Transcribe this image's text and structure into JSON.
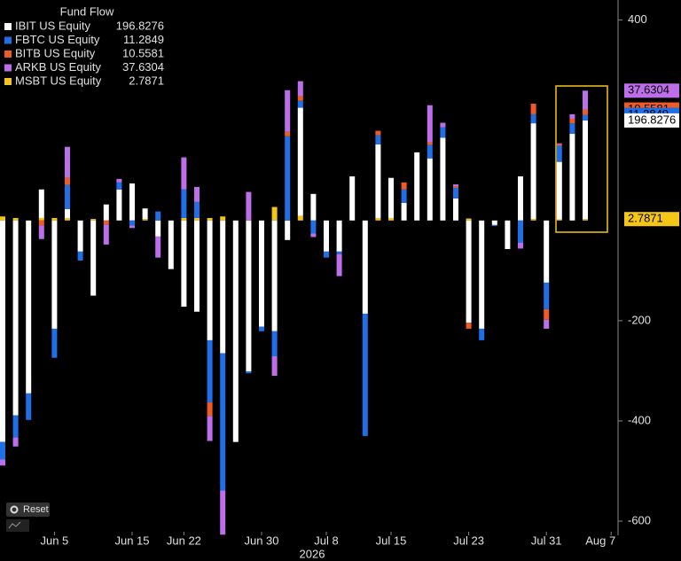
{
  "chart_data": {
    "type": "bar",
    "stacked": true,
    "legend_title": "Fund Flow",
    "xlabel": "2026",
    "categories": [
      null,
      null,
      null,
      null,
      "Jun 5",
      null,
      null,
      null,
      null,
      null,
      "Jun 15",
      null,
      null,
      null,
      "Jun 22",
      null,
      null,
      null,
      null,
      null,
      "Jun 30",
      null,
      null,
      null,
      null,
      "Jul 8",
      null,
      null,
      null,
      null,
      "Jul 15",
      null,
      null,
      null,
      null,
      null,
      "Jul 23",
      null,
      null,
      null,
      null,
      null,
      "Jul 31",
      null,
      null,
      null,
      null,
      "Aug 7"
    ],
    "series": [
      {
        "name": "IBIT US Equity",
        "color": "#ffffff",
        "values": [
          -442,
          -389,
          -345,
          57,
          -216,
          18,
          -62,
          -150,
          32,
          62,
          74,
          21,
          -32,
          -97,
          -172,
          -182,
          -239,
          -265,
          -442,
          -301,
          -212,
          -221,
          -39,
          216,
          53,
          -62,
          -62,
          88,
          -186,
          147,
          80,
          35,
          136,
          124,
          165,
          44,
          -204,
          -216,
          -9,
          -57,
          88,
          191,
          -124,
          115,
          173,
          196.8276,
          null,
          null
        ]
      },
      {
        "name": "FBTC US Equity",
        "color": "#1f6fe6",
        "values": [
          -35,
          -44,
          -53,
          0,
          -58,
          48,
          -18,
          0,
          0,
          14,
          -10,
          0,
          18,
          0,
          57,
          32,
          -124,
          -274,
          0,
          -4,
          -9,
          -50,
          168,
          14,
          -26,
          -12,
          -5,
          0,
          -244,
          18,
          0,
          27,
          0,
          27,
          21,
          21,
          0,
          -23,
          -2,
          0,
          -44,
          18,
          -53,
          32,
          21,
          11.2849,
          null,
          null
        ]
      },
      {
        "name": "BITB US Equity",
        "color": "#f05a23",
        "values": [
          0,
          0,
          0,
          -10,
          0,
          14,
          0,
          0,
          -8,
          0,
          0,
          0,
          0,
          0,
          0,
          0,
          -27,
          0,
          0,
          0,
          0,
          0,
          9,
          9,
          0,
          0,
          0,
          0,
          0,
          9,
          0,
          14,
          0,
          5,
          0,
          3,
          -12,
          0,
          0,
          0,
          0,
          21,
          -21,
          3,
          9,
          10.5581,
          null,
          null
        ]
      },
      {
        "name": "ARKB US Equity",
        "color": "#bd6fea",
        "values": [
          -12,
          -18,
          0,
          -27,
          0,
          62,
          0,
          0,
          -40,
          7,
          -5,
          0,
          -42,
          0,
          64,
          30,
          -50,
          -88,
          0,
          57,
          0,
          -39,
          83,
          30,
          -7,
          0,
          -44,
          0,
          0,
          0,
          0,
          0,
          0,
          74,
          9,
          4,
          0,
          0,
          0,
          0,
          -12,
          0,
          -18,
          2,
          9,
          37.6304,
          null,
          null
        ]
      },
      {
        "name": "MSBT US Equity",
        "color": "#f5c518",
        "values": [
          8,
          5,
          0,
          5,
          5,
          5,
          0,
          3,
          0,
          0,
          0,
          3,
          0,
          0,
          5,
          5,
          5,
          8,
          0,
          0,
          0,
          27,
          0,
          9,
          0,
          0,
          0,
          0,
          0,
          5,
          5,
          0,
          0,
          0,
          0,
          0,
          4,
          0,
          0,
          0,
          0,
          3,
          0,
          2,
          0,
          2.7871,
          null,
          null
        ]
      }
    ],
    "ylim": [
      -630,
      440
    ],
    "yticks": [
      400,
      -200,
      -400,
      -600
    ]
  },
  "controls": {
    "reset": "Reset"
  }
}
